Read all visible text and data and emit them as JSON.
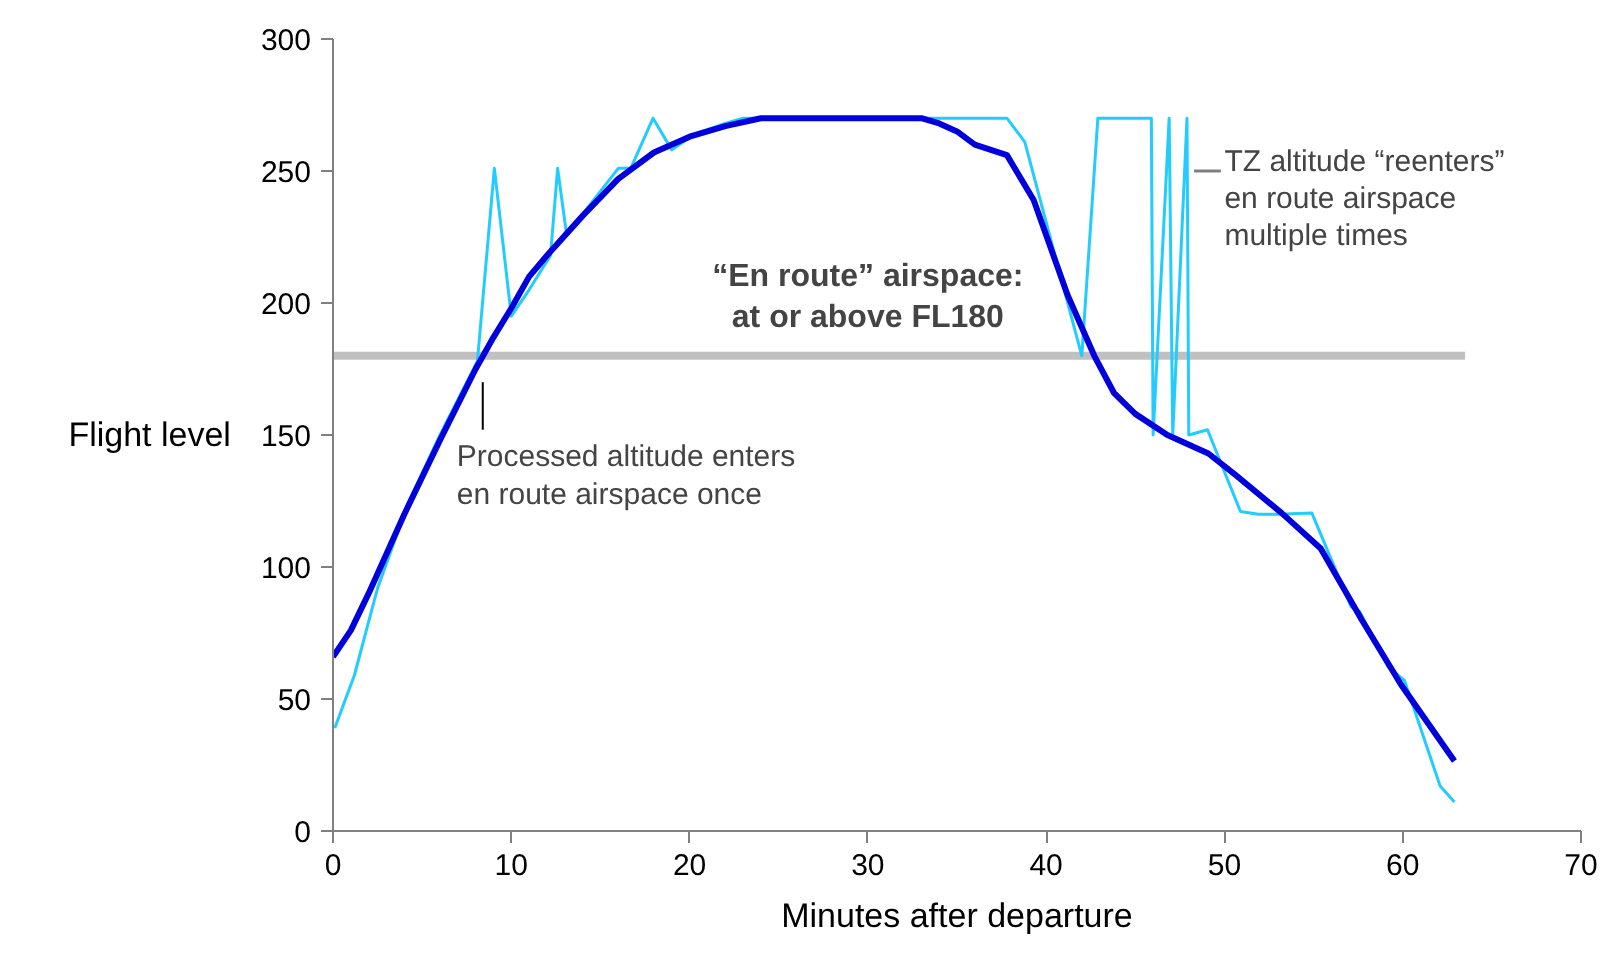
{
  "chart_data": {
    "type": "line",
    "xlabel": "Minutes after departure",
    "ylabel": "Flight level",
    "xlim": [
      0,
      70
    ],
    "xticks": [
      0,
      10,
      20,
      30,
      40,
      50,
      60,
      70
    ],
    "ylim": [
      0,
      300
    ],
    "yticks": [
      0,
      50,
      100,
      150,
      200,
      250,
      300
    ],
    "grid": false,
    "marker": "none",
    "line_style": "solid",
    "series": [
      {
        "color": "#22ccff",
        "x": [
          0.1,
          1.2,
          2.5,
          4.2,
          6,
          8.1,
          9.05,
          10,
          11,
          12.2,
          12.6,
          13.1,
          14.5,
          16,
          16.7,
          17.95,
          19,
          20.3,
          22,
          23,
          37.8,
          38.8,
          42,
          42.9,
          45.9,
          46,
          46.9,
          47.1,
          47.9,
          48.0,
          49.05,
          50.9,
          51.9,
          53,
          54.9,
          57.1,
          57.6,
          59.2,
          60.1,
          62.1,
          62.9
        ],
        "values": [
          39,
          59,
          92,
          124,
          150,
          178,
          251,
          195,
          205,
          218,
          251,
          226,
          238,
          251,
          251,
          270,
          258,
          264,
          268,
          270,
          270,
          261,
          180,
          270,
          270,
          150,
          270,
          150,
          270,
          150,
          152,
          121,
          120,
          120,
          120.5,
          85,
          83,
          62,
          57,
          17,
          11
        ]
      },
      {
        "color": "#0000dd",
        "x": [
          0,
          1,
          2,
          4,
          6,
          8,
          9,
          10,
          11,
          12,
          14,
          16,
          18,
          20,
          22,
          24,
          33,
          34,
          35,
          36,
          37.8,
          39.3,
          41.2,
          42.7,
          43.8,
          45,
          46.8,
          49.1,
          50.6,
          53.2,
          55.4,
          57.7,
          59.9,
          62.9
        ],
        "values": [
          66,
          76,
          90,
          120,
          148,
          175,
          187,
          198,
          210,
          218,
          233,
          247,
          257,
          263,
          267,
          270,
          270,
          268,
          265,
          260,
          256,
          239,
          203,
          180,
          166,
          158,
          150,
          143,
          135,
          120.5,
          107,
          80,
          55.5,
          26.5
        ]
      }
    ],
    "ref_lines": [
      {
        "axis": "y",
        "value": 180,
        "label": "“En route” airspace:\nat or above FL180",
        "color": "#c0c0c0"
      }
    ],
    "annotations": [
      {
        "text": "Processed altitude enters\nen route airspace once",
        "x": 8.4,
        "y": 180
      },
      {
        "text": "TZ altitude “reenters”\nen route airspace\nmultiple times",
        "x": 48,
        "y": 250
      }
    ]
  }
}
